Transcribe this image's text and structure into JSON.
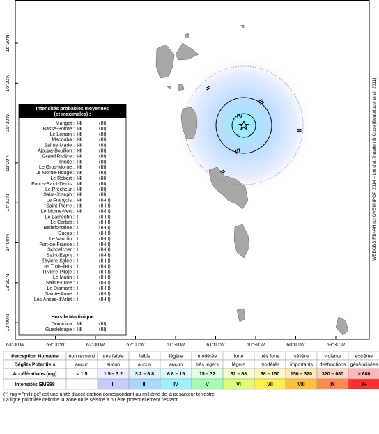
{
  "map": {
    "lat_labels": [
      "16°30'N",
      "16°00'N",
      "15°30'N",
      "15°00'N",
      "14°30'N",
      "14°00'N",
      "13°30'N",
      "13°00'N"
    ],
    "lon_labels": [
      "63°30'W",
      "63°00'W",
      "62°30'W",
      "62°00'W",
      "61°30'W",
      "61°00'W",
      "60°30'W",
      "60°00'W",
      "59°30'W"
    ],
    "credit": "WEBOBS FB<AH (c) OVSM-IPGP 2014 – Loi d'att?nuation B-Cube [Beauducel et al. 2011]",
    "labels": [
      "IV",
      "III",
      "III",
      "II",
      "II",
      "II"
    ]
  },
  "legend": {
    "title": [
      "Intensités probables moyennes",
      "(et maximales) :"
    ],
    "rows": [
      [
        "Marigot :",
        "I-II",
        "(III)"
      ],
      [
        "Basse-Pointe :",
        "I-II",
        "(III)"
      ],
      [
        "Le Lorrain :",
        "I-II",
        "(III)"
      ],
      [
        "Macouba :",
        "I-II",
        "(III)"
      ],
      [
        "Sainte-Marie :",
        "I-II",
        "(III)"
      ],
      [
        "Ajoupa-Bouillon :",
        "I-II",
        "(III)"
      ],
      [
        "Grand'Rivière :",
        "I-II",
        "(III)"
      ],
      [
        "Trinité :",
        "I-II",
        "(III)"
      ],
      [
        "Le Gros-Morne :",
        "I-II",
        "(III)"
      ],
      [
        "Le Morne-Rouge :",
        "I-II",
        "(III)"
      ],
      [
        "Le Robert :",
        "I-II",
        "(III)"
      ],
      [
        "Fonds-Saint-Denis :",
        "I-II",
        "(III)"
      ],
      [
        "Le Prêcheur :",
        "I-II",
        "(III)"
      ],
      [
        "Saint-Joseph :",
        "I-II",
        "(III)"
      ],
      [
        "Le François :",
        "I-II",
        "(II-III)"
      ],
      [
        "Saint-Pierre :",
        "I-II",
        "(II-III)"
      ],
      [
        "Le Morne-Vert :",
        "I-II",
        "(II-III)"
      ],
      [
        "Le Lamentin :",
        "I",
        "(II-III)"
      ],
      [
        "Le Carbet :",
        "I",
        "(II-III)"
      ],
      [
        "Bellefontaine :",
        "I",
        "(II-III)"
      ],
      [
        "Ducos :",
        "I",
        "(II-III)"
      ],
      [
        "Le Vauclin :",
        "I",
        "(II-III)"
      ],
      [
        "Fort-de-France :",
        "I",
        "(II-III)"
      ],
      [
        "Schoelcher :",
        "I",
        "(II-III)"
      ],
      [
        "Saint-Esprit :",
        "I",
        "(II-III)"
      ],
      [
        "Rivière-Salée :",
        "I",
        "(II-III)"
      ],
      [
        "Les Trois-Îlets :",
        "I",
        "(II-III)"
      ],
      [
        "Rivière-Pilote :",
        "I",
        "(II-III)"
      ],
      [
        "Le Marin :",
        "I",
        "(II-III)"
      ],
      [
        "Sainte-Luce :",
        "I",
        "(II-III)"
      ],
      [
        "Le Diamant :",
        "I",
        "(II-III)"
      ],
      [
        "Sainte-Anne :",
        "I",
        "(II-III)"
      ],
      [
        "Les Anses-d'Arlet :",
        "I",
        "(II-III)"
      ]
    ],
    "outside_title": "Hors la Martinique",
    "outside_rows": [
      [
        "Dominica :",
        "I-II",
        "(III)"
      ],
      [
        "Guadeloupe :",
        "I-II",
        "(III)"
      ]
    ]
  },
  "scale": {
    "rows": [
      [
        "Perception Humaine",
        "non ressenti",
        "très faible",
        "faible",
        "légère",
        "modérée",
        "forte",
        "très forte",
        "sévère",
        "violente",
        "extrême"
      ],
      [
        "Dégâts Potentiels",
        "aucun",
        "aucun",
        "aucun",
        "aucun",
        "très légers",
        "légers",
        "modérés",
        "importants",
        "destructions",
        "généralisées"
      ],
      [
        "Accélérations (mg)",
        "< 1.5",
        "1.5 – 3.2",
        "3.2 – 6.8",
        "6.8 – 15",
        "15 – 32",
        "32 – 68",
        "68 – 150",
        "150 – 320",
        "320 – 680",
        "> 680"
      ],
      [
        "Intensités EMS98",
        "I",
        "II",
        "III",
        "IV",
        "V",
        "VI",
        "VII",
        "VIII",
        "IX",
        "X+"
      ]
    ],
    "colors": [
      "#ffffff",
      "#c8ccff",
      "#a8d8ff",
      "#9ef2ff",
      "#a6ffb0",
      "#dcff7a",
      "#fff050",
      "#ffc040",
      "#ff8a50",
      "#ff3030"
    ]
  },
  "notes": [
    "(*) mg = \"milli gé\" est une unité d'accélération correspondant au millième de la pesanteur terrestre",
    "La ligne pointillée délimite la zone où le séisme a pu être potentiellement ressenti."
  ]
}
